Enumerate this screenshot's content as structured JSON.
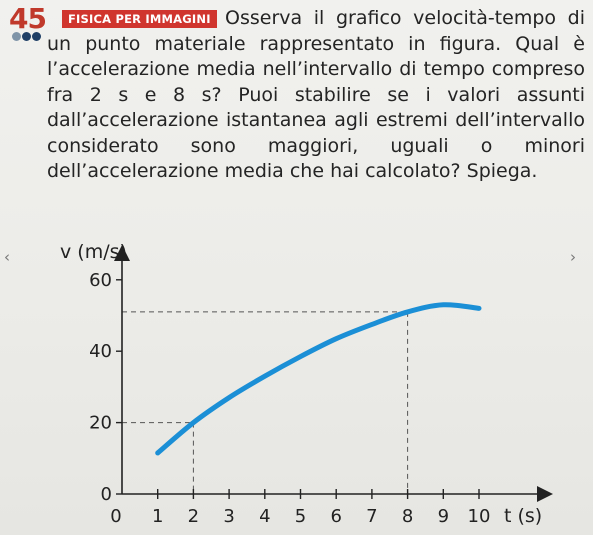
{
  "exercise": {
    "number": "45",
    "difficulty_dots": [
      "#7f94a8",
      "#1f3f66",
      "#1f3f66"
    ],
    "badge": "FISICA PER IMMAGINI",
    "question": "Osserva il grafico velocità-tempo di un punto materiale rappresentato in figura. Qual è l’accelerazione media nell’intervallo di tempo compreso fra 2 s e 8 s? Puoi stabilire se i valori assunti dall’accelerazione istantanea agli estremi dell’intervallo considerato sono maggiori, uguali o minori dell’accelerazione media che hai calcolato? Spiega."
  },
  "nav": {
    "prev": "‹",
    "next": "›"
  },
  "colors": {
    "accent": "#c0392b",
    "curve": "#1b8fd6",
    "badge": "#d0352e"
  },
  "chart_data": {
    "type": "line",
    "xlabel": "t (s)",
    "ylabel": "v (m/s)",
    "xlim": [
      0,
      11
    ],
    "ylim": [
      0,
      65
    ],
    "x_ticks": [
      0,
      1,
      2,
      3,
      4,
      5,
      6,
      7,
      8,
      9,
      10
    ],
    "y_ticks": [
      0,
      20,
      40,
      60
    ],
    "series": [
      {
        "x": [
          1,
          2,
          3,
          4,
          5,
          6,
          7,
          8,
          9,
          10
        ],
        "y": [
          11.5,
          20,
          27,
          33,
          38.5,
          43.5,
          47.5,
          51,
          53,
          52
        ]
      }
    ],
    "reference_points": [
      {
        "t": 2,
        "v": 20
      },
      {
        "t": 8,
        "v": 51
      }
    ]
  }
}
